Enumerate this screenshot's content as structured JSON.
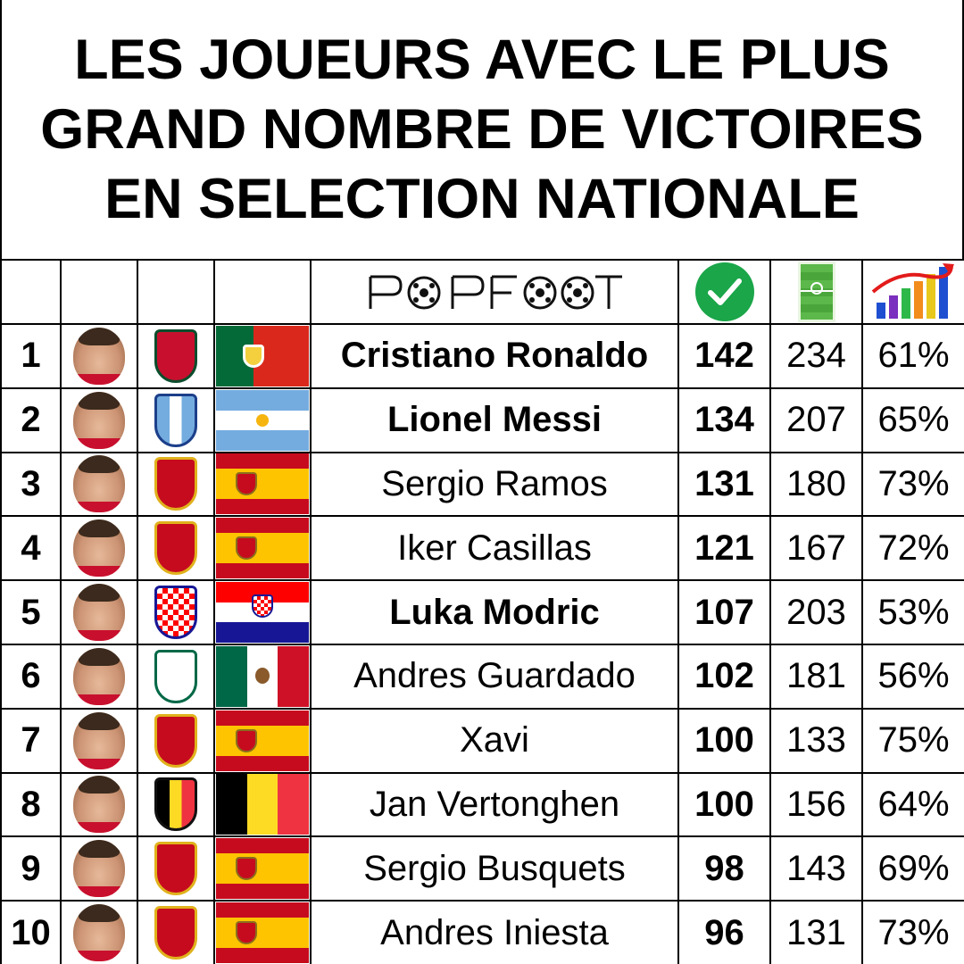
{
  "title": {
    "lines": [
      "LES JOUEURS AVEC LE PLUS",
      "GRAND NOMBRE DE VICTOIRES",
      "EN SELECTION NATIONALE"
    ]
  },
  "header": {
    "logo": "POPFOOT",
    "icons": [
      "check-icon",
      "pitch-icon",
      "chart-icon"
    ]
  },
  "players": [
    {
      "rank": "1",
      "name": "Cristiano Ronaldo",
      "bold": true,
      "wins": "142",
      "matches": "234",
      "pct": "61%",
      "country": "portugal"
    },
    {
      "rank": "2",
      "name": "Lionel Messi",
      "bold": true,
      "wins": "134",
      "matches": "207",
      "pct": "65%",
      "country": "argentina"
    },
    {
      "rank": "3",
      "name": "Sergio Ramos",
      "bold": false,
      "wins": "131",
      "matches": "180",
      "pct": "73%",
      "country": "spain"
    },
    {
      "rank": "4",
      "name": "Iker Casillas",
      "bold": false,
      "wins": "121",
      "matches": "167",
      "pct": "72%",
      "country": "spain"
    },
    {
      "rank": "5",
      "name": "Luka Modric",
      "bold": true,
      "wins": "107",
      "matches": "203",
      "pct": "53%",
      "country": "croatia"
    },
    {
      "rank": "6",
      "name": "Andres Guardado",
      "bold": false,
      "wins": "102",
      "matches": "181",
      "pct": "56%",
      "country": "mexico"
    },
    {
      "rank": "7",
      "name": "Xavi",
      "bold": false,
      "wins": "100",
      "matches": "133",
      "pct": "75%",
      "country": "spain"
    },
    {
      "rank": "8",
      "name": "Jan Vertonghen",
      "bold": false,
      "wins": "100",
      "matches": "156",
      "pct": "64%",
      "country": "belgium"
    },
    {
      "rank": "9",
      "name": "Sergio Busquets",
      "bold": false,
      "wins": "98",
      "matches": "143",
      "pct": "69%",
      "country": "spain"
    },
    {
      "rank": "10",
      "name": "Andres Iniesta",
      "bold": false,
      "wins": "96",
      "matches": "131",
      "pct": "73%",
      "country": "spain"
    }
  ],
  "colors": {
    "portugal": [
      "#046a38",
      "#da291c"
    ],
    "argentina": [
      "#74acdf",
      "#ffffff"
    ],
    "spain": [
      "#c60b1e",
      "#ffc400"
    ],
    "croatia": [
      "#ff0000",
      "#ffffff",
      "#171796"
    ],
    "mexico": [
      "#006847",
      "#ffffff",
      "#ce1126"
    ],
    "belgium": [
      "#000000",
      "#fdda24",
      "#ef3340"
    ],
    "check": "#1aa649"
  }
}
